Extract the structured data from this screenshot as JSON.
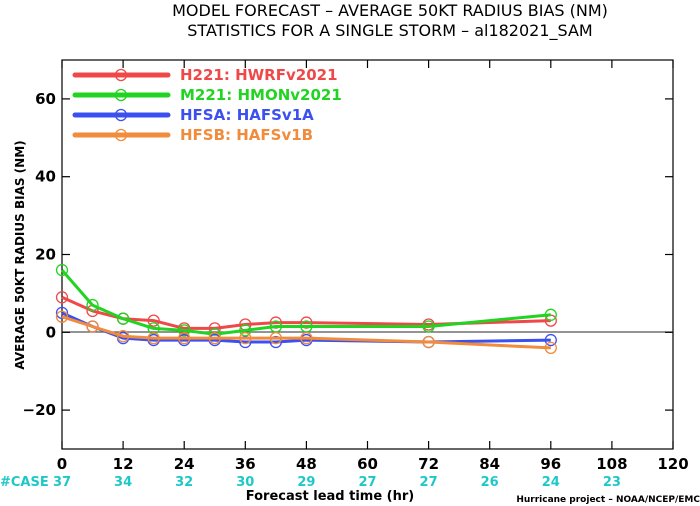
{
  "title_line1": "MODEL FORECAST – AVERAGE 50KT RADIUS BIAS (NM)",
  "title_line2": "STATISTICS FOR A SINGLE STORM – al182021_SAM",
  "credit": "Hurricane project – NOAA/NCEP/EMC",
  "case_label": "#CASE",
  "case_color": "#1fc8c8",
  "chart_data": {
    "type": "line",
    "xlabel": "Forecast lead time (hr)",
    "ylabel": "AVERAGE 50KT RADIUS BIAS (NM)",
    "xlim": [
      0,
      120
    ],
    "ylim": [
      -30,
      70
    ],
    "xticks": [
      0,
      12,
      24,
      36,
      48,
      60,
      72,
      84,
      96,
      108,
      120
    ],
    "yticks": [
      -20,
      0,
      20,
      40,
      60
    ],
    "ytick_labels": [
      "−20",
      "0",
      "20",
      "40",
      "60"
    ],
    "zero_line": true,
    "grid": false,
    "legend_position": "top-left",
    "cases": [
      {
        "x": 0,
        "n": "37"
      },
      {
        "x": 12,
        "n": "34"
      },
      {
        "x": 24,
        "n": "32"
      },
      {
        "x": 36,
        "n": "30"
      },
      {
        "x": 48,
        "n": "29"
      },
      {
        "x": 60,
        "n": "27"
      },
      {
        "x": 72,
        "n": "27"
      },
      {
        "x": 84,
        "n": "26"
      },
      {
        "x": 96,
        "n": "24"
      },
      {
        "x": 108,
        "n": "23"
      }
    ],
    "series": [
      {
        "name": "H221: HWRFv2021",
        "color": "#f04848",
        "points": [
          [
            0,
            9
          ],
          [
            6,
            5.5
          ],
          [
            12,
            3.5
          ],
          [
            18,
            3
          ],
          [
            24,
            1
          ],
          [
            30,
            1
          ],
          [
            36,
            2
          ],
          [
            42,
            2.5
          ],
          [
            48,
            2.5
          ],
          [
            72,
            2
          ],
          [
            96,
            3
          ]
        ]
      },
      {
        "name": "M221: HMONv2021",
        "color": "#22d422",
        "points": [
          [
            0,
            16
          ],
          [
            6,
            7
          ],
          [
            12,
            3.5
          ],
          [
            18,
            1
          ],
          [
            24,
            0.5
          ],
          [
            30,
            -0.5
          ],
          [
            36,
            0.5
          ],
          [
            42,
            1.5
          ],
          [
            48,
            1.5
          ],
          [
            72,
            1.5
          ],
          [
            96,
            4.5
          ]
        ]
      },
      {
        "name": "HFSA: HAFSv1A",
        "color": "#3c50f0",
        "points": [
          [
            0,
            5
          ],
          [
            6,
            1.5
          ],
          [
            12,
            -1.5
          ],
          [
            18,
            -2
          ],
          [
            24,
            -2
          ],
          [
            30,
            -2
          ],
          [
            36,
            -2.5
          ],
          [
            42,
            -2.5
          ],
          [
            48,
            -2
          ],
          [
            72,
            -2.5
          ],
          [
            96,
            -2
          ]
        ]
      },
      {
        "name": "HFSB: HAFSv1B",
        "color": "#f08c3c",
        "points": [
          [
            0,
            4
          ],
          [
            6,
            1.5
          ],
          [
            12,
            -1
          ],
          [
            18,
            -1.5
          ],
          [
            24,
            -1.5
          ],
          [
            30,
            -1.5
          ],
          [
            36,
            -1.5
          ],
          [
            42,
            -1.5
          ],
          [
            48,
            -1.5
          ],
          [
            72,
            -2.5
          ],
          [
            96,
            -4
          ]
        ]
      }
    ]
  }
}
